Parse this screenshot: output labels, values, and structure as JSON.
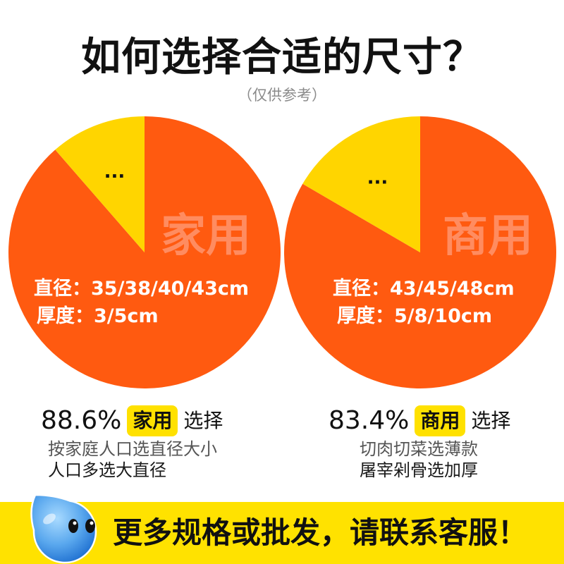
{
  "title": "如何选择合适的尺寸？",
  "subtitle": "（仅供参考）",
  "colors": {
    "pie_main": "#FF5A10",
    "pie_other": "#FFD500",
    "watermark_text": "#FF8C60",
    "annotation_text": "#FFFFFF",
    "badge": "#FFE100",
    "banner": "#FFE200",
    "mascot_light": "#A8DAFF",
    "mascot_dark": "#1E6FD0"
  },
  "icons": {
    "mascot": "water-droplet-mascot-icon"
  },
  "chart_data": [
    {
      "type": "pie",
      "slices": [
        {
          "label": "家用",
          "value": 88.6
        },
        {
          "label": "...",
          "value": 11.4
        }
      ],
      "annotations": [
        "直径：35/38/40/43cm",
        "厚度：3/5cm"
      ]
    },
    {
      "type": "pie",
      "slices": [
        {
          "label": "商用",
          "value": 83.4
        },
        {
          "label": "...",
          "value": 16.6
        }
      ],
      "annotations": [
        "直径：43/45/48cm",
        "厚度：5/8/10cm"
      ]
    }
  ],
  "choices": [
    {
      "stat_value": "88.6%",
      "badge": "家用",
      "suffix": "选择",
      "notes": [
        "按家庭人口选直径大小",
        "人口多选大直径"
      ]
    },
    {
      "stat_value": "83.4%",
      "badge": "商用",
      "suffix": "选择",
      "notes": [
        "切肉切菜选薄款",
        "屠宰剁骨选加厚"
      ]
    }
  ],
  "banner": {
    "text": "更多规格或批发，请联系客服！"
  }
}
